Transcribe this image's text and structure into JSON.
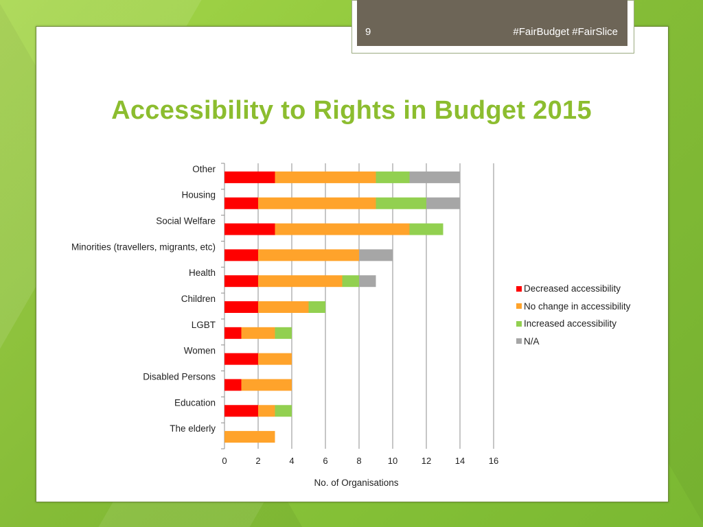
{
  "header": {
    "slide_number": "9",
    "hashtags": "#FairBudget #FairSlice"
  },
  "title": "Accessibility to Rights in Budget 2015",
  "chart_data": {
    "type": "bar",
    "orientation": "horizontal",
    "stacked": true,
    "categories": [
      "Other",
      "Housing",
      "Social Welfare",
      "Minorities (travellers, migrants, etc)",
      "Health",
      "Children",
      "LGBT",
      "Women",
      "Disabled Persons",
      "Education",
      "The elderly"
    ],
    "series": [
      {
        "name": "Decreased accessibility",
        "color": "#ff0000",
        "values": [
          3,
          2,
          3,
          2,
          2,
          2,
          1,
          2,
          1,
          2,
          0
        ]
      },
      {
        "name": "No change in accessibility",
        "color": "#ffa32b",
        "values": [
          6,
          7,
          8,
          6,
          5,
          3,
          2,
          2,
          3,
          1,
          3
        ]
      },
      {
        "name": "Increased accessibility",
        "color": "#92d050",
        "values": [
          2,
          3,
          2,
          0,
          1,
          1,
          1,
          0,
          0,
          1,
          0
        ]
      },
      {
        "name": "N/A",
        "color": "#a6a6a6",
        "values": [
          3,
          2,
          0,
          2,
          1,
          0,
          0,
          0,
          0,
          0,
          0
        ]
      }
    ],
    "xlabel": "No. of Organisations",
    "ylabel": "",
    "xlim": [
      0,
      16
    ],
    "xticks": [
      "0",
      "2",
      "4",
      "6",
      "8",
      "10",
      "12",
      "14",
      "16"
    ],
    "grid": "vertical",
    "legend": "right"
  }
}
